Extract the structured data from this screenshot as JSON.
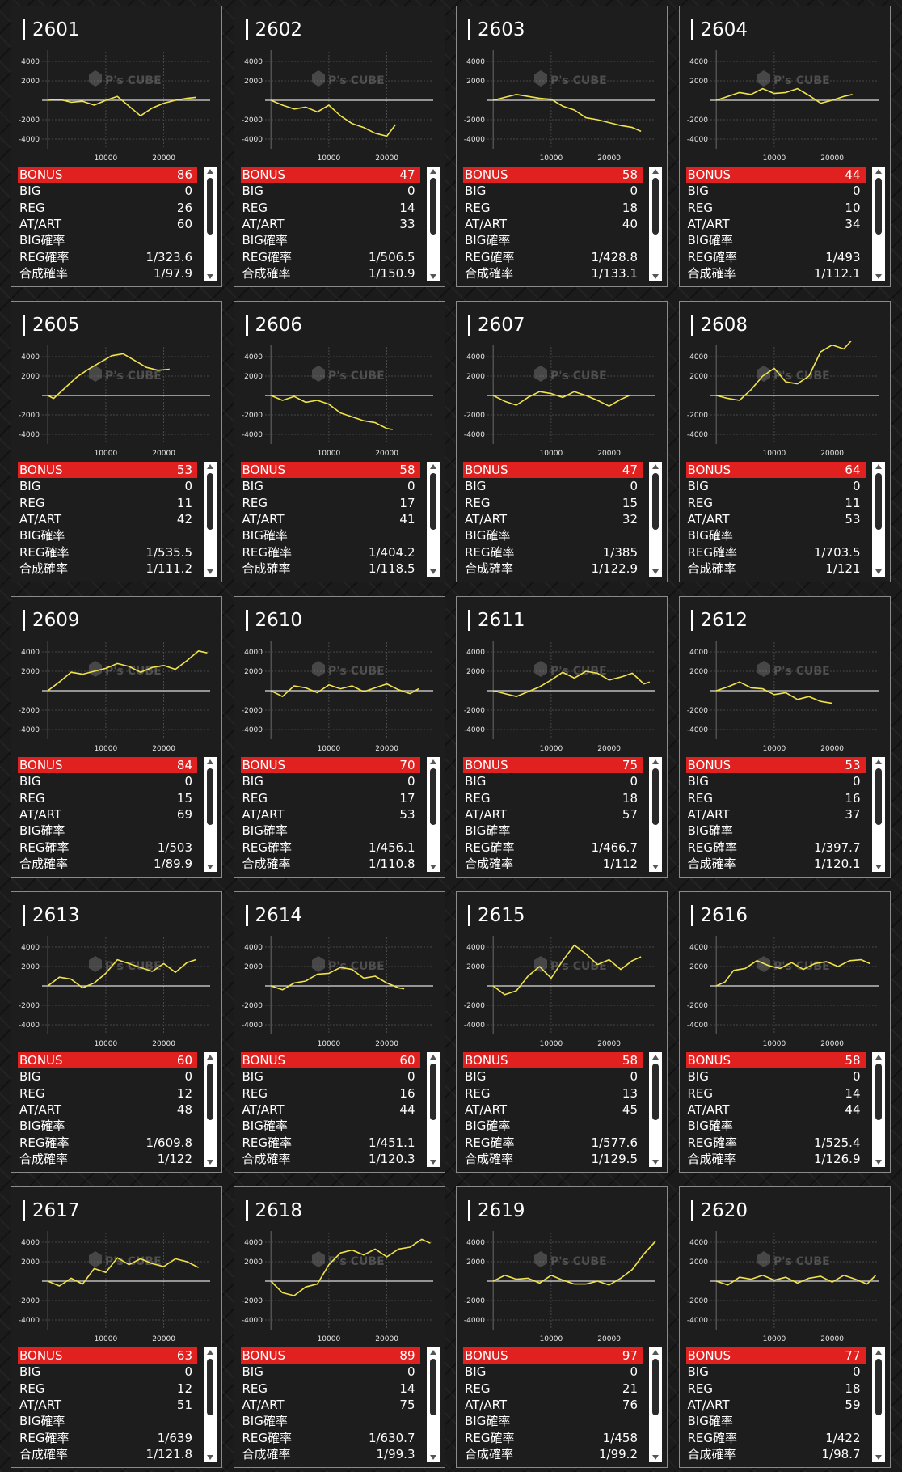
{
  "labels": {
    "bonus": "BONUS",
    "big": "BIG",
    "reg": "REG",
    "atart": "AT/ART",
    "big_rate": "BIG確率",
    "reg_rate": "REG確率",
    "combined_rate": "合成確率"
  },
  "watermark": "P's CUBE",
  "colors": {
    "line": "#f0e24a",
    "bonus_bar": "#e0211f",
    "card_bg": "#1d1d1d",
    "card_border": "#8a8a8a",
    "zero_line": "#ffffff",
    "grid": "#555555"
  },
  "chart_axes": {
    "y_ticks": [
      "4000",
      "2000",
      "-2000",
      "-4000"
    ],
    "x_ticks": [
      "10000",
      "20000"
    ],
    "ylim": [
      -5000,
      5000
    ],
    "xlim": [
      -1000,
      28000
    ]
  },
  "machines": [
    {
      "id": "2601",
      "bonus": "86",
      "big": "0",
      "reg": "26",
      "atart": "60",
      "big_rate": "",
      "reg_rate": "1/323.6",
      "combined_rate": "1/97.9",
      "chart_data": {
        "type": "line",
        "x": [
          0,
          2000,
          4000,
          6000,
          8000,
          10000,
          12000,
          14000,
          16000,
          18000,
          20000,
          22000,
          24000,
          25500
        ],
        "y": [
          0,
          100,
          -200,
          -100,
          -500,
          0,
          400,
          -600,
          -1600,
          -800,
          -300,
          0,
          200,
          300
        ]
      }
    },
    {
      "id": "2602",
      "bonus": "47",
      "big": "0",
      "reg": "14",
      "atart": "33",
      "big_rate": "",
      "reg_rate": "1/506.5",
      "combined_rate": "1/150.9",
      "chart_data": {
        "type": "line",
        "x": [
          0,
          2000,
          4000,
          6000,
          8000,
          10000,
          12000,
          14000,
          16000,
          18000,
          20000,
          21500
        ],
        "y": [
          0,
          -500,
          -900,
          -700,
          -1200,
          -500,
          -1600,
          -2400,
          -2800,
          -3400,
          -3700,
          -2500
        ]
      }
    },
    {
      "id": "2603",
      "bonus": "58",
      "big": "0",
      "reg": "18",
      "atart": "40",
      "big_rate": "",
      "reg_rate": "1/428.8",
      "combined_rate": "1/133.1",
      "chart_data": {
        "type": "line",
        "x": [
          0,
          2000,
          4000,
          6000,
          8000,
          10000,
          12000,
          14000,
          16000,
          18000,
          20000,
          22000,
          24000,
          25500
        ],
        "y": [
          0,
          300,
          600,
          400,
          200,
          100,
          -600,
          -1000,
          -1800,
          -2000,
          -2300,
          -2600,
          -2800,
          -3200
        ]
      }
    },
    {
      "id": "2604",
      "bonus": "44",
      "big": "0",
      "reg": "10",
      "atart": "34",
      "big_rate": "",
      "reg_rate": "1/493",
      "combined_rate": "1/112.1",
      "chart_data": {
        "type": "line",
        "x": [
          0,
          2000,
          4000,
          6000,
          8000,
          10000,
          12000,
          14000,
          16000,
          18000,
          20000,
          22000,
          23500
        ],
        "y": [
          0,
          400,
          800,
          600,
          1200,
          700,
          800,
          1200,
          500,
          -300,
          0,
          400,
          600
        ]
      }
    },
    {
      "id": "2605",
      "bonus": "53",
      "big": "0",
      "reg": "11",
      "atart": "42",
      "big_rate": "",
      "reg_rate": "1/535.5",
      "combined_rate": "1/111.2",
      "chart_data": {
        "type": "line",
        "x": [
          0,
          1000,
          3000,
          5000,
          7000,
          9000,
          11000,
          13000,
          15000,
          17000,
          19000,
          21000
        ],
        "y": [
          0,
          -300,
          800,
          1900,
          2700,
          3400,
          4100,
          4300,
          3600,
          2900,
          2600,
          2700
        ]
      }
    },
    {
      "id": "2606",
      "bonus": "58",
      "big": "0",
      "reg": "17",
      "atart": "41",
      "big_rate": "",
      "reg_rate": "1/404.2",
      "combined_rate": "1/118.5",
      "chart_data": {
        "type": "line",
        "x": [
          0,
          2000,
          4000,
          6000,
          8000,
          10000,
          12000,
          14000,
          16000,
          18000,
          20000,
          21000
        ],
        "y": [
          0,
          -500,
          -100,
          -700,
          -500,
          -900,
          -1800,
          -2200,
          -2600,
          -2800,
          -3400,
          -3500
        ]
      }
    },
    {
      "id": "2607",
      "bonus": "47",
      "big": "0",
      "reg": "15",
      "atart": "32",
      "big_rate": "",
      "reg_rate": "1/385",
      "combined_rate": "1/122.9",
      "chart_data": {
        "type": "line",
        "x": [
          0,
          2000,
          4000,
          6000,
          8000,
          10000,
          12000,
          14000,
          16000,
          18000,
          20000,
          22000,
          23500
        ],
        "y": [
          0,
          -600,
          -1000,
          -200,
          400,
          200,
          -200,
          400,
          0,
          -500,
          -1100,
          -400,
          0
        ]
      }
    },
    {
      "id": "2608",
      "bonus": "64",
      "big": "0",
      "reg": "11",
      "atart": "53",
      "big_rate": "",
      "reg_rate": "1/703.5",
      "combined_rate": "1/121",
      "chart_data": {
        "type": "line",
        "x": [
          0,
          2000,
          4000,
          6000,
          8000,
          10000,
          12000,
          14000,
          16000,
          18000,
          20000,
          22000,
          24000,
          26000,
          28000
        ],
        "y": [
          0,
          -300,
          -500,
          600,
          2000,
          2800,
          1400,
          1200,
          2000,
          4500,
          5200,
          4800,
          6100,
          5700,
          6300
        ]
      }
    },
    {
      "id": "2609",
      "bonus": "84",
      "big": "0",
      "reg": "15",
      "atart": "69",
      "big_rate": "",
      "reg_rate": "1/503",
      "combined_rate": "1/89.9",
      "chart_data": {
        "type": "line",
        "x": [
          0,
          2000,
          4000,
          6000,
          8000,
          10000,
          12000,
          14000,
          16000,
          18000,
          20000,
          22000,
          24000,
          26000,
          27500
        ],
        "y": [
          0,
          900,
          1900,
          1700,
          2000,
          2300,
          2800,
          2500,
          1900,
          2400,
          2600,
          2200,
          3100,
          4100,
          3900
        ]
      }
    },
    {
      "id": "2610",
      "bonus": "70",
      "big": "0",
      "reg": "17",
      "atart": "53",
      "big_rate": "",
      "reg_rate": "1/456.1",
      "combined_rate": "1/110.8",
      "chart_data": {
        "type": "line",
        "x": [
          0,
          2000,
          4000,
          6000,
          8000,
          10000,
          12000,
          14000,
          16000,
          18000,
          20000,
          22000,
          24000,
          25500
        ],
        "y": [
          0,
          -600,
          500,
          300,
          -200,
          600,
          200,
          500,
          -100,
          300,
          700,
          100,
          -300,
          200
        ]
      }
    },
    {
      "id": "2611",
      "bonus": "75",
      "big": "0",
      "reg": "18",
      "atart": "57",
      "big_rate": "",
      "reg_rate": "1/466.7",
      "combined_rate": "1/112",
      "chart_data": {
        "type": "line",
        "x": [
          0,
          2000,
          4000,
          6000,
          8000,
          10000,
          12000,
          14000,
          16000,
          18000,
          20000,
          22000,
          24000,
          26000,
          27000
        ],
        "y": [
          0,
          -300,
          -600,
          -100,
          400,
          1100,
          1900,
          1300,
          2000,
          1800,
          1100,
          1400,
          1800,
          700,
          900
        ]
      }
    },
    {
      "id": "2612",
      "bonus": "53",
      "big": "0",
      "reg": "16",
      "atart": "37",
      "big_rate": "",
      "reg_rate": "1/397.7",
      "combined_rate": "1/120.1",
      "chart_data": {
        "type": "line",
        "x": [
          0,
          2000,
          4000,
          6000,
          8000,
          10000,
          12000,
          14000,
          16000,
          18000,
          20000
        ],
        "y": [
          0,
          400,
          900,
          300,
          200,
          -400,
          -200,
          -900,
          -600,
          -1100,
          -1300
        ]
      }
    },
    {
      "id": "2613",
      "bonus": "60",
      "big": "0",
      "reg": "12",
      "atart": "48",
      "big_rate": "",
      "reg_rate": "1/609.8",
      "combined_rate": "1/122",
      "chart_data": {
        "type": "line",
        "x": [
          0,
          2000,
          4000,
          6000,
          8000,
          10000,
          12000,
          14000,
          16000,
          18000,
          20000,
          22000,
          24000,
          25500
        ],
        "y": [
          0,
          900,
          700,
          -200,
          300,
          1300,
          2700,
          2300,
          1900,
          1500,
          2300,
          1400,
          2400,
          2700
        ]
      }
    },
    {
      "id": "2614",
      "bonus": "60",
      "big": "0",
      "reg": "16",
      "atart": "44",
      "big_rate": "",
      "reg_rate": "1/451.1",
      "combined_rate": "1/120.3",
      "chart_data": {
        "type": "line",
        "x": [
          0,
          2000,
          4000,
          6000,
          8000,
          10000,
          12000,
          14000,
          16000,
          18000,
          20000,
          22000,
          23000
        ],
        "y": [
          0,
          -400,
          300,
          500,
          1200,
          1300,
          1900,
          1700,
          800,
          1000,
          300,
          -200,
          -300
        ]
      }
    },
    {
      "id": "2615",
      "bonus": "58",
      "big": "0",
      "reg": "13",
      "atart": "45",
      "big_rate": "",
      "reg_rate": "1/577.6",
      "combined_rate": "1/129.5",
      "chart_data": {
        "type": "line",
        "x": [
          0,
          2000,
          4000,
          6000,
          8000,
          10000,
          12000,
          14000,
          16000,
          18000,
          20000,
          22000,
          24000,
          25500
        ],
        "y": [
          0,
          -900,
          -500,
          1000,
          2000,
          800,
          2600,
          4200,
          3300,
          2200,
          2700,
          1700,
          2600,
          3000
        ]
      }
    },
    {
      "id": "2616",
      "bonus": "58",
      "big": "0",
      "reg": "14",
      "atart": "44",
      "big_rate": "",
      "reg_rate": "1/525.4",
      "combined_rate": "1/126.9",
      "chart_data": {
        "type": "line",
        "x": [
          0,
          1500,
          3000,
          5000,
          7000,
          9000,
          11000,
          13000,
          15000,
          17000,
          19000,
          21000,
          23000,
          25000,
          26500
        ],
        "y": [
          0,
          400,
          1600,
          1800,
          2600,
          2100,
          1800,
          2400,
          1700,
          2300,
          2500,
          2000,
          2600,
          2700,
          2300
        ]
      }
    },
    {
      "id": "2617",
      "bonus": "63",
      "big": "0",
      "reg": "12",
      "atart": "51",
      "big_rate": "",
      "reg_rate": "1/639",
      "combined_rate": "1/121.8",
      "chart_data": {
        "type": "line",
        "x": [
          0,
          2000,
          4000,
          6000,
          8000,
          10000,
          12000,
          14000,
          16000,
          18000,
          20000,
          22000,
          24000,
          26000
        ],
        "y": [
          0,
          -500,
          300,
          -300,
          1300,
          900,
          2400,
          1700,
          2300,
          1800,
          1500,
          2300,
          2000,
          1400
        ]
      }
    },
    {
      "id": "2618",
      "bonus": "89",
      "big": "0",
      "reg": "14",
      "atart": "75",
      "big_rate": "",
      "reg_rate": "1/630.7",
      "combined_rate": "1/99.3",
      "chart_data": {
        "type": "line",
        "x": [
          0,
          2000,
          4000,
          6000,
          8000,
          10000,
          12000,
          14000,
          16000,
          18000,
          20000,
          22000,
          24000,
          26000,
          27500
        ],
        "y": [
          0,
          -1200,
          -1500,
          -600,
          -300,
          1700,
          2900,
          3200,
          2700,
          3300,
          2500,
          3300,
          3500,
          4300,
          3900
        ]
      }
    },
    {
      "id": "2619",
      "bonus": "97",
      "big": "0",
      "reg": "21",
      "atart": "76",
      "big_rate": "",
      "reg_rate": "1/458",
      "combined_rate": "1/99.2",
      "chart_data": {
        "type": "line",
        "x": [
          0,
          2000,
          4000,
          6000,
          8000,
          10000,
          12000,
          14000,
          16000,
          18000,
          20000,
          22000,
          24000,
          26000,
          28000
        ],
        "y": [
          0,
          600,
          200,
          300,
          -200,
          600,
          100,
          -300,
          -300,
          0,
          -400,
          300,
          1200,
          2800,
          4100
        ]
      }
    },
    {
      "id": "2620",
      "bonus": "77",
      "big": "0",
      "reg": "18",
      "atart": "59",
      "big_rate": "",
      "reg_rate": "1/422",
      "combined_rate": "1/98.7",
      "chart_data": {
        "type": "line",
        "x": [
          0,
          2000,
          4000,
          6000,
          8000,
          10000,
          12000,
          14000,
          16000,
          18000,
          20000,
          22000,
          24000,
          26000,
          27500
        ],
        "y": [
          0,
          -400,
          400,
          200,
          600,
          100,
          400,
          -200,
          300,
          500,
          -100,
          600,
          200,
          -300,
          600
        ]
      }
    }
  ]
}
